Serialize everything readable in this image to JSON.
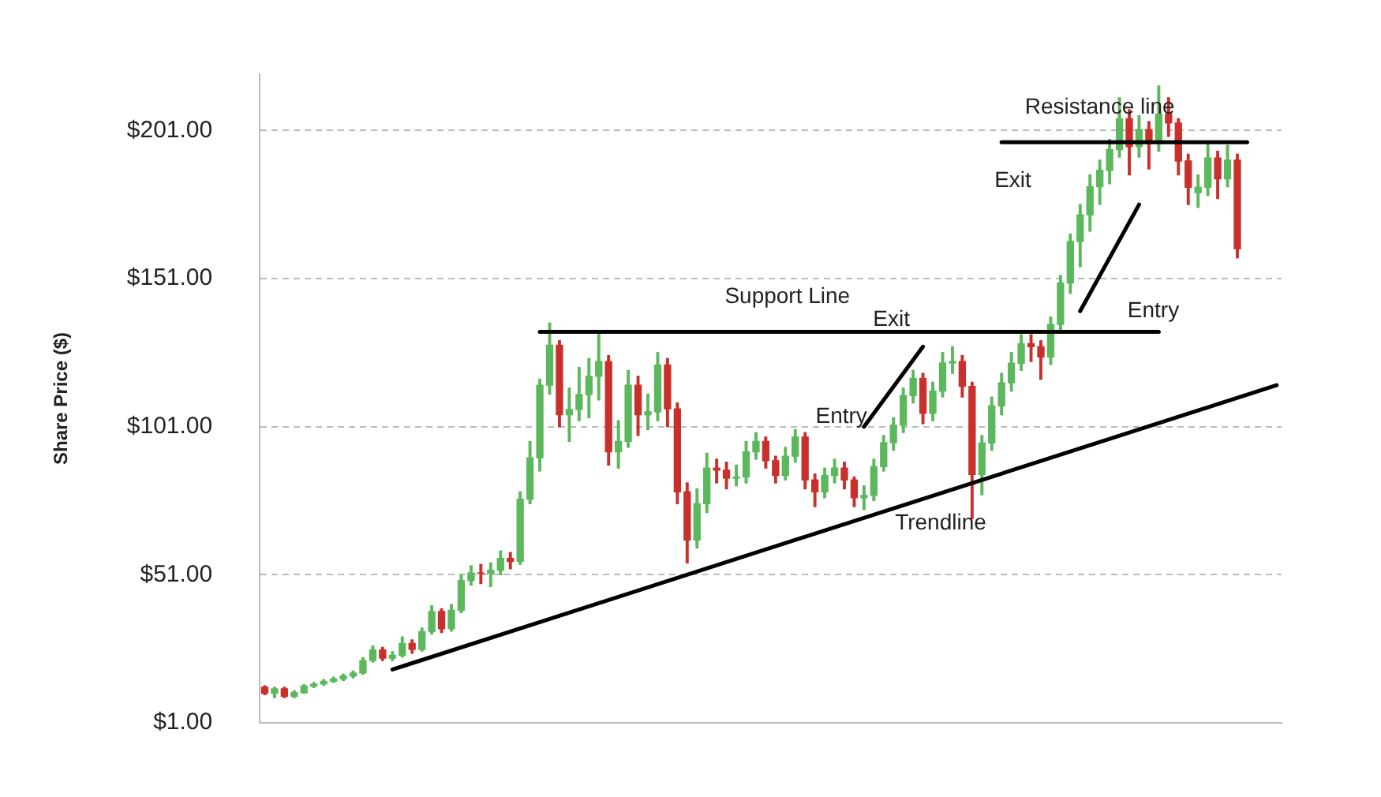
{
  "chart_data": {
    "type": "candlestick",
    "ylabel": "Share Price ($)",
    "legend": false,
    "grid": "y",
    "tick_labels": "y",
    "ylim": [
      1,
      220
    ],
    "yticks": [
      {
        "value": 1,
        "label": "$1.00"
      },
      {
        "value": 51,
        "label": "$51.00"
      },
      {
        "value": 101,
        "label": "$101.00"
      },
      {
        "value": 151,
        "label": "$151.00"
      },
      {
        "value": 201,
        "label": "$201.00"
      }
    ],
    "categories": [
      null,
      null,
      null,
      null,
      null,
      null,
      null,
      null,
      null,
      null,
      null,
      null,
      null,
      null,
      null,
      null,
      null,
      null,
      null,
      null,
      null,
      null,
      null,
      null,
      null,
      null,
      null,
      null,
      null,
      null,
      null,
      null,
      null,
      null,
      null,
      null,
      null,
      null,
      null,
      null,
      null,
      null,
      null,
      null,
      null,
      null,
      null,
      null,
      null,
      null,
      null,
      null,
      null,
      null,
      null,
      null,
      null,
      null,
      null,
      null,
      null,
      null,
      null,
      null,
      null,
      null,
      null,
      null,
      null,
      null,
      null,
      null,
      null,
      null,
      null,
      null,
      null,
      null,
      null,
      null,
      null,
      null,
      null,
      null,
      null,
      null,
      null,
      null,
      null,
      null,
      null,
      null,
      null,
      null,
      null,
      null,
      null,
      null,
      null,
      null,
      null,
      null,
      null,
      null
    ],
    "series": [
      {
        "ohlc": [
          [
            13,
            13.5,
            10.5,
            11
          ],
          [
            11,
            13,
            9.5,
            12.5
          ],
          [
            12.5,
            13,
            9.5,
            10
          ],
          [
            10,
            11.8,
            9.5,
            11.2
          ],
          [
            11.2,
            13.9,
            11,
            13.4
          ],
          [
            13.4,
            14.6,
            12.9,
            14.1
          ],
          [
            14.1,
            15.6,
            13.7,
            15
          ],
          [
            15,
            16.4,
            14.6,
            15.8
          ],
          [
            15.8,
            17.4,
            15.3,
            16.8
          ],
          [
            16.8,
            18.5,
            16.2,
            17.8
          ],
          [
            17.8,
            23,
            17.4,
            22
          ],
          [
            22,
            27,
            21.5,
            25.6
          ],
          [
            25.6,
            26.5,
            22,
            22.8
          ],
          [
            22.8,
            25,
            22,
            23.8
          ],
          [
            23.8,
            30,
            23.2,
            27.8
          ],
          [
            27.8,
            29,
            24.5,
            25.8
          ],
          [
            25.8,
            33,
            25.2,
            31.8
          ],
          [
            31.8,
            40.5,
            31,
            38.6
          ],
          [
            38.6,
            39.5,
            31.5,
            32.8
          ],
          [
            32.8,
            41,
            32,
            39
          ],
          [
            39,
            51,
            38.2,
            49
          ],
          [
            49,
            54,
            47.5,
            51.6
          ],
          [
            51.6,
            54.5,
            48,
            51.5
          ],
          [
            51.5,
            55,
            47,
            52.5
          ],
          [
            52.5,
            59,
            51,
            56.5
          ],
          [
            56.5,
            58.5,
            53,
            55.5
          ],
          [
            55.5,
            79,
            54.5,
            76.5
          ],
          [
            76.5,
            96,
            75,
            90.5
          ],
          [
            90.5,
            117,
            86,
            115
          ],
          [
            115,
            136,
            112,
            128.5
          ],
          [
            128.5,
            130,
            101,
            105
          ],
          [
            105,
            114,
            96,
            106.8
          ],
          [
            106.8,
            121,
            103,
            111.8
          ],
          [
            111.8,
            124,
            104,
            118
          ],
          [
            118,
            133,
            110,
            123
          ],
          [
            123,
            125,
            88,
            92.5
          ],
          [
            92.5,
            103,
            87,
            96
          ],
          [
            96,
            120,
            94,
            115
          ],
          [
            115,
            118,
            98,
            105
          ],
          [
            105,
            112,
            100,
            106
          ],
          [
            106,
            126,
            103,
            121.8
          ],
          [
            121.8,
            124,
            101,
            107
          ],
          [
            107,
            109,
            75,
            79
          ],
          [
            79,
            82,
            55,
            62.7
          ],
          [
            62.7,
            80,
            60,
            75
          ],
          [
            75,
            92,
            72,
            87
          ],
          [
            87,
            90,
            82,
            86.3
          ],
          [
            86.3,
            89,
            80,
            83.6
          ],
          [
            83.6,
            88,
            81,
            84
          ],
          [
            84,
            96,
            82,
            92.5
          ],
          [
            92.5,
            99,
            90,
            96
          ],
          [
            96,
            97.5,
            87,
            89.5
          ],
          [
            89.5,
            91,
            82,
            84.5
          ],
          [
            84.5,
            94,
            83,
            91
          ],
          [
            91,
            100,
            89,
            97.5
          ],
          [
            97.5,
            99,
            80,
            83
          ],
          [
            83,
            85,
            74,
            79
          ],
          [
            79,
            87,
            77,
            84.5
          ],
          [
            84.5,
            90,
            82,
            87
          ],
          [
            87,
            89,
            80,
            83
          ],
          [
            83,
            84,
            74,
            77
          ],
          [
            77,
            81,
            73,
            77.8
          ],
          [
            77.8,
            90,
            76,
            87.5
          ],
          [
            87.5,
            98,
            86,
            95.6
          ],
          [
            95.6,
            104,
            93,
            101.5
          ],
          [
            101.5,
            114,
            99,
            111.5
          ],
          [
            111.5,
            120,
            109,
            117.3
          ],
          [
            117.3,
            119,
            102,
            105.5
          ],
          [
            105.5,
            116,
            103,
            113
          ],
          [
            113,
            126,
            111,
            122.5
          ],
          [
            122.5,
            128,
            119,
            123
          ],
          [
            123,
            125,
            111,
            114.6
          ],
          [
            114.6,
            116,
            70,
            84.8
          ],
          [
            84.8,
            98,
            78,
            95.5
          ],
          [
            95.5,
            111,
            93,
            108
          ],
          [
            108,
            119,
            105,
            115.8
          ],
          [
            115.8,
            126,
            113,
            122.4
          ],
          [
            122.4,
            132,
            120,
            129
          ],
          [
            129,
            132,
            123,
            128
          ],
          [
            128,
            130,
            117,
            124.5
          ],
          [
            124.5,
            138,
            122,
            135.5
          ],
          [
            135.5,
            152,
            133,
            149.5
          ],
          [
            149.5,
            166,
            146,
            163.5
          ],
          [
            163.5,
            176,
            155,
            172.5
          ],
          [
            172.5,
            186,
            167,
            182
          ],
          [
            182,
            191,
            176,
            187.5
          ],
          [
            187.5,
            198,
            183,
            194.5
          ],
          [
            194.5,
            212,
            192,
            205
          ],
          [
            205,
            208,
            186,
            195.5
          ],
          [
            195.5,
            206,
            192,
            201.3
          ],
          [
            201.3,
            204,
            188,
            196.5
          ],
          [
            196.5,
            216,
            194,
            206.5
          ],
          [
            206.5,
            212,
            199,
            203.5
          ],
          [
            203.5,
            205,
            186,
            190.7
          ],
          [
            190.7,
            193,
            176,
            181.8
          ],
          [
            180,
            186,
            175,
            181.8
          ],
          [
            181.8,
            197,
            179,
            191.7
          ],
          [
            191.7,
            194,
            178,
            184.7
          ],
          [
            184.7,
            196,
            182,
            191
          ],
          [
            191,
            193,
            158,
            161
          ],
          null,
          null,
          null,
          null
        ],
        "colors": [
          "#c9302c",
          "#5cb85c",
          "#c9302c",
          "#5cb85c",
          "#5cb85c",
          "#5cb85c",
          "#5cb85c",
          "#5cb85c",
          "#5cb85c",
          "#5cb85c",
          "#5cb85c",
          "#5cb85c",
          "#c9302c",
          "#5cb85c",
          "#5cb85c",
          "#c9302c",
          "#5cb85c",
          "#5cb85c",
          "#c9302c",
          "#5cb85c",
          "#5cb85c",
          "#5cb85c",
          "#c9302c",
          "#5cb85c",
          "#5cb85c",
          "#c9302c",
          "#5cb85c",
          "#5cb85c",
          "#5cb85c",
          "#5cb85c",
          "#c9302c",
          "#5cb85c",
          "#5cb85c",
          "#5cb85c",
          "#5cb85c",
          "#c9302c",
          "#5cb85c",
          "#5cb85c",
          "#c9302c",
          "#5cb85c",
          "#5cb85c",
          "#c9302c",
          "#c9302c",
          "#c9302c",
          "#5cb85c",
          "#5cb85c",
          "#c9302c",
          "#c9302c",
          "#5cb85c",
          "#5cb85c",
          "#5cb85c",
          "#c9302c",
          "#c9302c",
          "#5cb85c",
          "#5cb85c",
          "#c9302c",
          "#c9302c",
          "#5cb85c",
          "#5cb85c",
          "#c9302c",
          "#c9302c",
          "#5cb85c",
          "#5cb85c",
          "#5cb85c",
          "#5cb85c",
          "#5cb85c",
          "#5cb85c",
          "#c9302c",
          "#5cb85c",
          "#5cb85c",
          "#5cb85c",
          "#c9302c",
          "#c9302c",
          "#5cb85c",
          "#5cb85c",
          "#5cb85c",
          "#5cb85c",
          "#5cb85c",
          "#c9302c",
          "#c9302c",
          "#5cb85c",
          "#5cb85c",
          "#5cb85c",
          "#5cb85c",
          "#5cb85c",
          "#5cb85c",
          "#5cb85c",
          "#5cb85c",
          "#c9302c",
          "#5cb85c",
          "#c9302c",
          "#5cb85c",
          "#c9302c",
          "#c9302c",
          "#c9302c",
          "#5cb85c",
          "#5cb85c",
          "#c9302c",
          "#5cb85c",
          "#c9302c",
          null,
          null,
          null,
          null
        ]
      },
      {
        "type": "line",
        "name": "Trendline",
        "color": "#000000",
        "values": [
          null,
          null,
          null,
          null,
          null,
          null,
          null,
          null,
          null,
          null,
          null,
          null,
          null,
          19,
          null,
          null,
          null,
          null,
          null,
          null,
          null,
          null,
          null,
          null,
          null,
          null,
          null,
          null,
          null,
          null,
          null,
          null,
          null,
          null,
          null,
          null,
          null,
          null,
          null,
          null,
          null,
          null,
          null,
          null,
          null,
          null,
          null,
          null,
          null,
          null,
          null,
          null,
          null,
          null,
          null,
          null,
          null,
          null,
          null,
          null,
          null,
          null,
          null,
          null,
          null,
          null,
          null,
          null,
          null,
          null,
          null,
          null,
          null,
          null,
          null,
          null,
          null,
          null,
          null,
          null,
          null,
          null,
          null,
          null,
          null,
          null,
          null,
          null,
          null,
          null,
          null,
          null,
          null,
          null,
          null,
          null,
          null,
          null,
          null,
          null,
          null,
          null,
          null,
          115
        ]
      },
      {
        "type": "line",
        "name": "Support Line",
        "color": "#000000",
        "values": [
          null,
          null,
          null,
          null,
          null,
          null,
          null,
          null,
          null,
          null,
          null,
          null,
          null,
          null,
          null,
          null,
          null,
          null,
          null,
          null,
          null,
          null,
          null,
          null,
          null,
          null,
          null,
          null,
          133,
          null,
          null,
          null,
          null,
          null,
          null,
          null,
          null,
          null,
          null,
          null,
          null,
          null,
          null,
          null,
          null,
          null,
          null,
          null,
          null,
          null,
          null,
          null,
          null,
          null,
          null,
          null,
          null,
          null,
          null,
          null,
          null,
          null,
          null,
          null,
          null,
          null,
          null,
          null,
          null,
          null,
          null,
          null,
          null,
          null,
          null,
          null,
          null,
          null,
          null,
          null,
          null,
          null,
          null,
          null,
          null,
          null,
          null,
          null,
          null,
          null,
          null,
          133,
          null,
          null,
          null,
          null,
          null,
          null,
          null,
          null,
          null,
          null,
          null,
          null
        ]
      },
      {
        "type": "line",
        "name": "Resistance line",
        "color": "#000000",
        "values": [
          null,
          null,
          null,
          null,
          null,
          null,
          null,
          null,
          null,
          null,
          null,
          null,
          null,
          null,
          null,
          null,
          null,
          null,
          null,
          null,
          null,
          null,
          null,
          null,
          null,
          null,
          null,
          null,
          null,
          null,
          null,
          null,
          null,
          null,
          null,
          null,
          null,
          null,
          null,
          null,
          null,
          null,
          null,
          null,
          null,
          null,
          null,
          null,
          null,
          null,
          null,
          null,
          null,
          null,
          null,
          null,
          null,
          null,
          null,
          null,
          null,
          null,
          null,
          null,
          null,
          null,
          null,
          null,
          null,
          null,
          null,
          null,
          null,
          null,
          null,
          197,
          null,
          null,
          null,
          null,
          null,
          null,
          null,
          null,
          null,
          null,
          null,
          null,
          null,
          null,
          null,
          null,
          null,
          null,
          null,
          null,
          null,
          null,
          null,
          null,
          197,
          null,
          null,
          null
        ]
      },
      {
        "type": "line",
        "color": "#000000",
        "values": [
          null,
          null,
          null,
          null,
          null,
          null,
          null,
          null,
          null,
          null,
          null,
          null,
          null,
          null,
          null,
          null,
          null,
          null,
          null,
          null,
          null,
          null,
          null,
          null,
          null,
          null,
          null,
          null,
          null,
          null,
          null,
          null,
          null,
          null,
          null,
          null,
          null,
          null,
          null,
          null,
          null,
          null,
          null,
          null,
          null,
          null,
          null,
          null,
          null,
          null,
          null,
          null,
          null,
          null,
          null,
          null,
          null,
          null,
          null,
          null,
          null,
          101,
          null,
          null,
          null,
          null,
          null,
          128,
          null,
          null,
          null,
          null,
          null,
          null,
          null,
          null,
          null,
          null,
          null,
          null,
          null,
          null,
          null,
          null,
          null,
          null,
          null,
          null,
          null,
          null,
          null,
          null,
          null,
          null,
          null,
          null,
          null,
          null,
          null,
          null,
          null,
          null,
          null,
          null
        ]
      },
      {
        "type": "line",
        "color": "#000000",
        "values": [
          null,
          null,
          null,
          null,
          null,
          null,
          null,
          null,
          null,
          null,
          null,
          null,
          null,
          null,
          null,
          null,
          null,
          null,
          null,
          null,
          null,
          null,
          null,
          null,
          null,
          null,
          null,
          null,
          null,
          null,
          null,
          null,
          null,
          null,
          null,
          null,
          null,
          null,
          null,
          null,
          null,
          null,
          null,
          null,
          null,
          null,
          null,
          null,
          null,
          null,
          null,
          null,
          null,
          null,
          null,
          null,
          null,
          null,
          null,
          null,
          null,
          null,
          null,
          null,
          null,
          null,
          null,
          null,
          null,
          null,
          null,
          null,
          null,
          null,
          null,
          null,
          null,
          null,
          null,
          null,
          null,
          null,
          null,
          140,
          null,
          null,
          null,
          null,
          null,
          176,
          null,
          null,
          null,
          null,
          null,
          null,
          null,
          null,
          null,
          null,
          null,
          null,
          null,
          null
        ]
      }
    ],
    "annotations": [
      "Entry",
      "Exit",
      "Entry",
      "Exit"
    ]
  }
}
